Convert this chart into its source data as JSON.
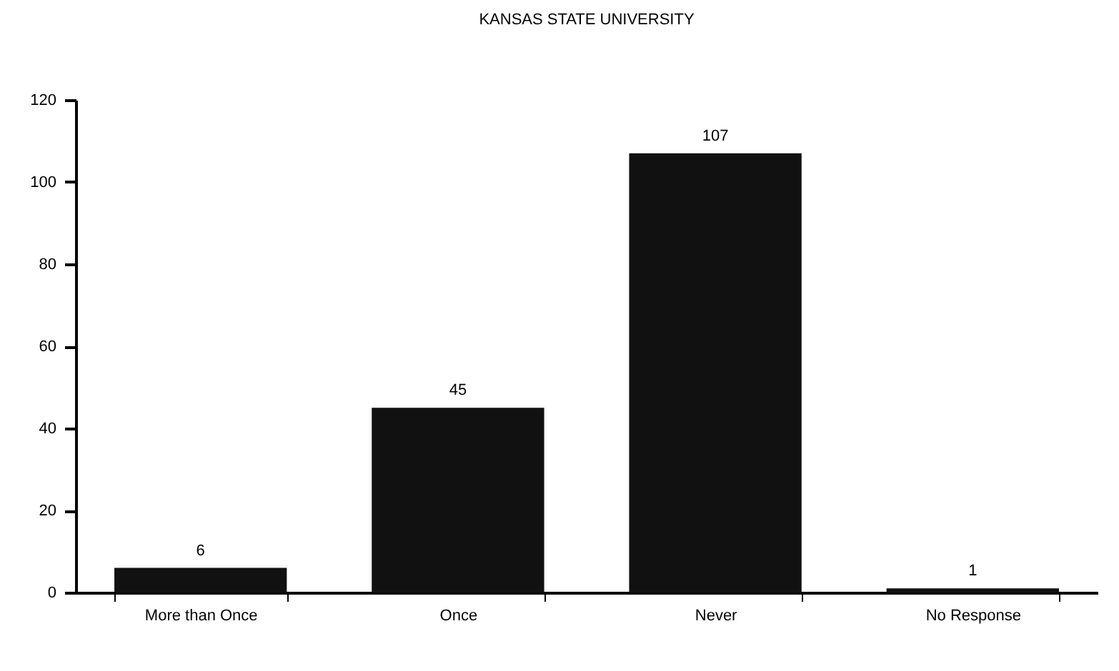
{
  "chart_data": {
    "type": "bar",
    "title": "KANSAS STATE UNIVERSITY",
    "categories": [
      "More than Once",
      "Once",
      "Never",
      "No Response"
    ],
    "values": [
      6,
      45,
      107,
      1
    ],
    "color": "#111111",
    "ylim": [
      0,
      120
    ],
    "yticks": [
      0,
      20,
      40,
      60,
      80,
      100,
      120
    ],
    "grid": false,
    "data_labels": true
  }
}
